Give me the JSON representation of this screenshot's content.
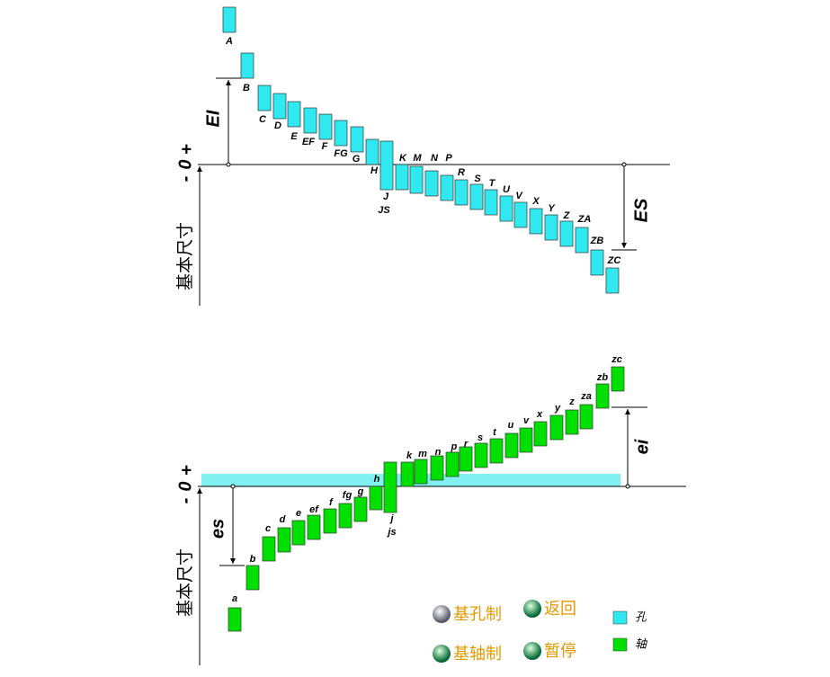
{
  "top": {
    "axis_label": "基本尺寸",
    "plus": "+",
    "zero": "0",
    "minus": "-",
    "lower_deviation": "EI",
    "upper_deviation": "ES",
    "holes": [
      "A",
      "B",
      "C",
      "D",
      "E",
      "EF",
      "F",
      "FG",
      "G",
      "H",
      "J",
      "JS",
      "K",
      "M",
      "N",
      "P",
      "R",
      "S",
      "T",
      "U",
      "V",
      "X",
      "Y",
      "Z",
      "ZA",
      "ZB",
      "ZC"
    ]
  },
  "bottom": {
    "axis_label": "基本尺寸",
    "plus": "+",
    "zero": "0",
    "minus": "-",
    "upper_deviation": "es",
    "lower_deviation": "ei",
    "shafts": [
      "a",
      "b",
      "c",
      "d",
      "e",
      "ef",
      "f",
      "fg",
      "g",
      "h",
      "j",
      "js",
      "k",
      "m",
      "n",
      "p",
      "r",
      "s",
      "t",
      "u",
      "v",
      "x",
      "y",
      "z",
      "za",
      "zb",
      "zc"
    ]
  },
  "controls": [
    "基孔制",
    "返回",
    "基轴制",
    "暂停"
  ],
  "legend": [
    "孔",
    "轴"
  ]
}
